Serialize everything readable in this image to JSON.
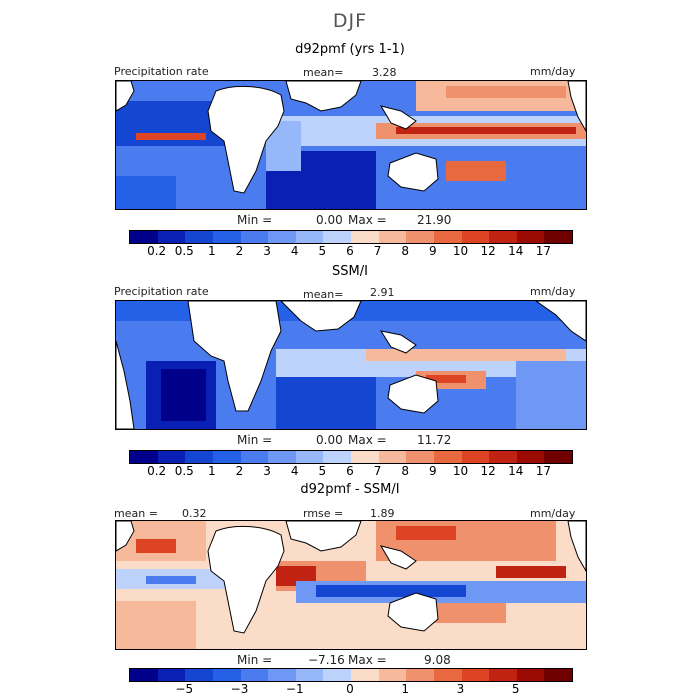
{
  "figure": {
    "title": "DJF"
  },
  "panels": [
    {
      "title": "d92pmf (yrs 1-1)",
      "left_label": "Precipitation rate",
      "center_label": "mean=",
      "center_value": "3.28",
      "units": "mm/day",
      "min_label": "Min =",
      "min_value": "0.00",
      "max_label": "Max =",
      "max_value": "21.90"
    },
    {
      "title": "SSM/I",
      "left_label": "Precipitation rate",
      "center_label": "mean=",
      "center_value": "2.91",
      "units": "mm/day",
      "min_label": "Min =",
      "min_value": "0.00",
      "max_label": "Max =",
      "max_value": "11.72"
    },
    {
      "title": "d92pmf - SSM/I",
      "left_label": "mean =",
      "left_value": "0.32",
      "center_label": "rmse =",
      "center_value": "1.89",
      "units": "mm/day",
      "min_label": "Min =",
      "min_value": "−7.16",
      "max_label": "Max =",
      "max_value": "9.08"
    }
  ],
  "precip_colorbar": {
    "colors": [
      "#00008b",
      "#0a1fb4",
      "#1446d2",
      "#2461e6",
      "#4a7cf0",
      "#6f98f5",
      "#96b7fa",
      "#bdd3fc",
      "#fbdcc8",
      "#f6b99c",
      "#f0916e",
      "#e8693f",
      "#dc4423",
      "#c02311",
      "#9c0a04",
      "#700000"
    ],
    "ticks": [
      "0.2",
      "0.5",
      "1",
      "2",
      "3",
      "4",
      "5",
      "6",
      "7",
      "8",
      "9",
      "10",
      "12",
      "14",
      "17"
    ]
  },
  "diff_colorbar": {
    "colors": [
      "#00008b",
      "#0a1fb4",
      "#1446d2",
      "#2461e6",
      "#4a7cf0",
      "#6f98f5",
      "#96b7fa",
      "#bdd3fc",
      "#fbdcc8",
      "#f6b99c",
      "#f0916e",
      "#e8693f",
      "#dc4423",
      "#c02311",
      "#9c0a04",
      "#700000"
    ],
    "ticks": [
      "−5",
      "−3",
      "−1",
      "0",
      "1",
      "3",
      "5"
    ]
  }
}
